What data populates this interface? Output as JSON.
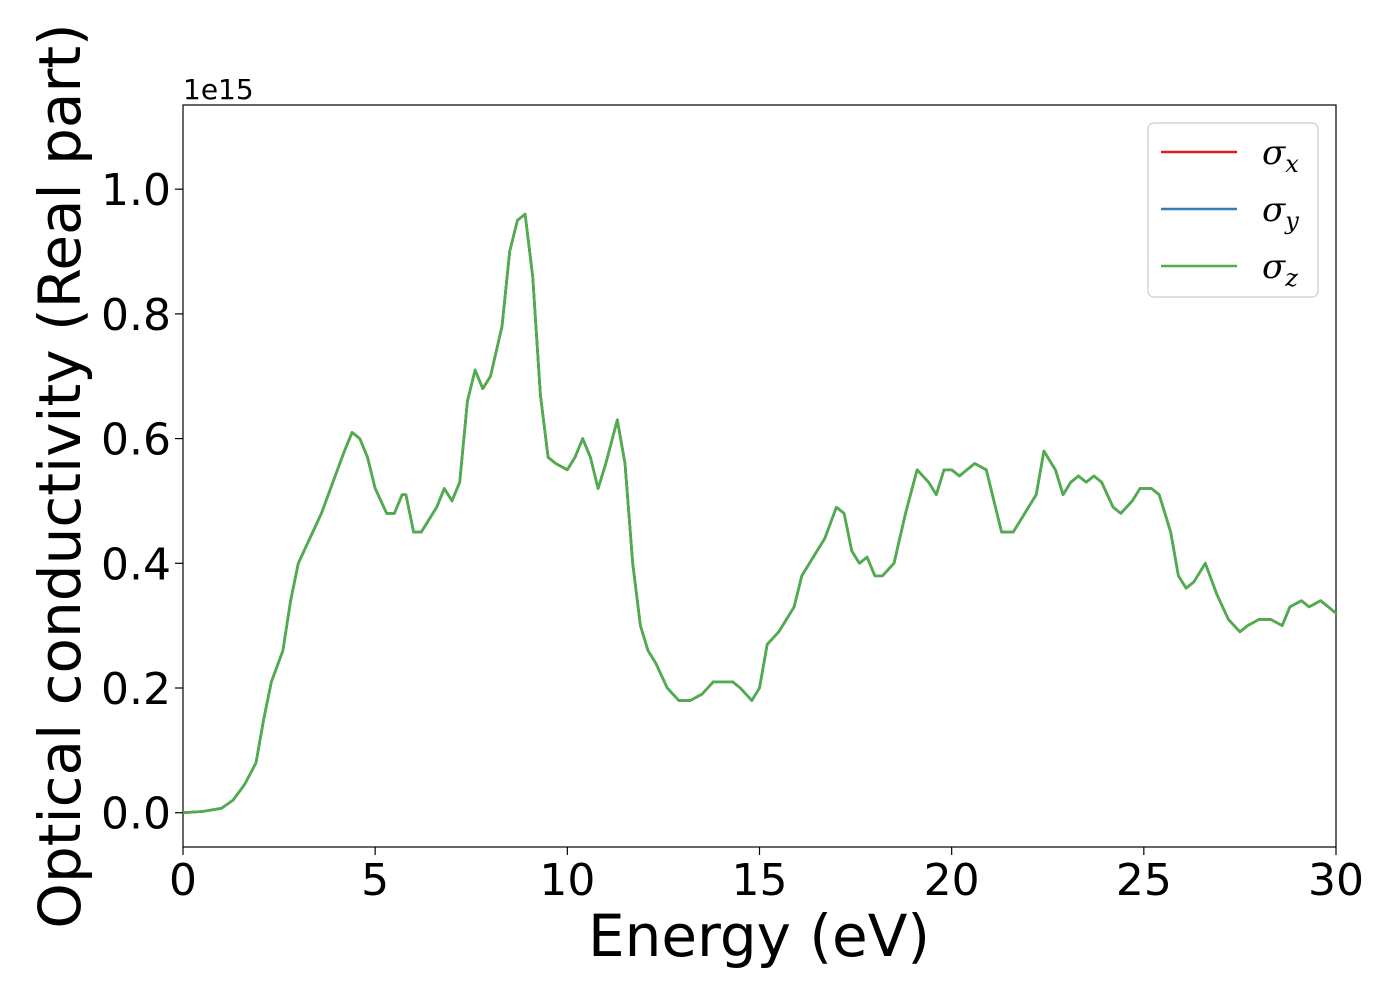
{
  "chart_data": {
    "type": "line",
    "xlabel": "Energy (eV)",
    "ylabel": "Optical conductivity (Real part)",
    "y_offset_label": "1e15",
    "xlim": [
      0,
      30
    ],
    "ylim": [
      -0.055,
      1.135
    ],
    "x_ticks": [
      0,
      5,
      10,
      15,
      20,
      25,
      30
    ],
    "x_tick_labels": [
      "0",
      "5",
      "10",
      "15",
      "20",
      "25",
      "30"
    ],
    "y_ticks": [
      0.0,
      0.2,
      0.4,
      0.6,
      0.8,
      1.0
    ],
    "y_tick_labels": [
      "0.0",
      "0.2",
      "0.4",
      "0.6",
      "0.8",
      "1.0"
    ],
    "grid": false,
    "legend_position": "top-right",
    "y_scale_factor": 1000000000000000.0,
    "x": [
      0.0,
      0.5,
      1.0,
      1.3,
      1.6,
      1.9,
      2.1,
      2.3,
      2.6,
      2.8,
      3.0,
      3.3,
      3.6,
      3.9,
      4.2,
      4.4,
      4.6,
      4.8,
      5.0,
      5.3,
      5.5,
      5.7,
      5.8,
      5.9,
      6.0,
      6.2,
      6.4,
      6.6,
      6.8,
      7.0,
      7.2,
      7.4,
      7.6,
      7.8,
      8.0,
      8.3,
      8.5,
      8.7,
      8.9,
      9.1,
      9.3,
      9.5,
      9.7,
      10.0,
      10.2,
      10.4,
      10.6,
      10.8,
      11.0,
      11.3,
      11.5,
      11.7,
      11.9,
      12.1,
      12.3,
      12.6,
      12.9,
      13.2,
      13.5,
      13.8,
      14.1,
      14.3,
      14.5,
      14.8,
      15.0,
      15.2,
      15.5,
      15.7,
      15.9,
      16.1,
      16.4,
      16.7,
      17.0,
      17.2,
      17.4,
      17.6,
      17.8,
      18.0,
      18.2,
      18.5,
      18.8,
      19.1,
      19.4,
      19.6,
      19.8,
      20.0,
      20.2,
      20.4,
      20.6,
      20.9,
      21.1,
      21.3,
      21.6,
      21.9,
      22.2,
      22.4,
      22.7,
      22.9,
      23.1,
      23.3,
      23.5,
      23.7,
      23.9,
      24.2,
      24.4,
      24.7,
      24.9,
      25.2,
      25.4,
      25.7,
      25.9,
      26.1,
      26.3,
      26.6,
      26.9,
      27.2,
      27.5,
      27.7,
      28.0,
      28.3,
      28.6,
      28.8,
      29.1,
      29.3,
      29.6,
      29.8,
      30.0
    ],
    "series": [
      {
        "name": "σx",
        "color": "#e41a1c",
        "values": [
          0.0,
          0.002,
          0.007,
          0.02,
          0.045,
          0.08,
          0.15,
          0.21,
          0.26,
          0.34,
          0.4,
          0.44,
          0.48,
          0.53,
          0.58,
          0.61,
          0.6,
          0.57,
          0.52,
          0.48,
          0.48,
          0.51,
          0.51,
          0.48,
          0.45,
          0.45,
          0.47,
          0.49,
          0.52,
          0.5,
          0.53,
          0.66,
          0.71,
          0.68,
          0.7,
          0.78,
          0.9,
          0.95,
          0.96,
          0.86,
          0.67,
          0.57,
          0.56,
          0.55,
          0.57,
          0.6,
          0.57,
          0.52,
          0.56,
          0.63,
          0.56,
          0.4,
          0.3,
          0.26,
          0.24,
          0.2,
          0.18,
          0.18,
          0.19,
          0.21,
          0.21,
          0.21,
          0.2,
          0.18,
          0.2,
          0.27,
          0.29,
          0.31,
          0.33,
          0.38,
          0.41,
          0.44,
          0.49,
          0.48,
          0.42,
          0.4,
          0.41,
          0.38,
          0.38,
          0.4,
          0.48,
          0.55,
          0.53,
          0.51,
          0.55,
          0.55,
          0.54,
          0.55,
          0.56,
          0.55,
          0.5,
          0.45,
          0.45,
          0.48,
          0.51,
          0.58,
          0.55,
          0.51,
          0.53,
          0.54,
          0.53,
          0.54,
          0.53,
          0.49,
          0.48,
          0.5,
          0.52,
          0.52,
          0.51,
          0.45,
          0.38,
          0.36,
          0.37,
          0.4,
          0.35,
          0.31,
          0.29,
          0.3,
          0.31,
          0.31,
          0.3,
          0.33,
          0.34,
          0.33,
          0.34,
          0.33,
          0.32
        ]
      },
      {
        "name": "σy",
        "color": "#377eb8",
        "values": [
          0.0,
          0.002,
          0.007,
          0.02,
          0.045,
          0.08,
          0.15,
          0.21,
          0.26,
          0.34,
          0.4,
          0.44,
          0.48,
          0.53,
          0.58,
          0.61,
          0.6,
          0.57,
          0.52,
          0.48,
          0.48,
          0.51,
          0.51,
          0.48,
          0.45,
          0.45,
          0.47,
          0.49,
          0.52,
          0.5,
          0.53,
          0.66,
          0.71,
          0.68,
          0.7,
          0.78,
          0.9,
          0.95,
          0.96,
          0.86,
          0.67,
          0.57,
          0.56,
          0.55,
          0.57,
          0.6,
          0.57,
          0.52,
          0.56,
          0.63,
          0.56,
          0.4,
          0.3,
          0.26,
          0.24,
          0.2,
          0.18,
          0.18,
          0.19,
          0.21,
          0.21,
          0.21,
          0.2,
          0.18,
          0.2,
          0.27,
          0.29,
          0.31,
          0.33,
          0.38,
          0.41,
          0.44,
          0.49,
          0.48,
          0.42,
          0.4,
          0.41,
          0.38,
          0.38,
          0.4,
          0.48,
          0.55,
          0.53,
          0.51,
          0.55,
          0.55,
          0.54,
          0.55,
          0.56,
          0.55,
          0.5,
          0.45,
          0.45,
          0.48,
          0.51,
          0.58,
          0.55,
          0.51,
          0.53,
          0.54,
          0.53,
          0.54,
          0.53,
          0.49,
          0.48,
          0.5,
          0.52,
          0.52,
          0.51,
          0.45,
          0.38,
          0.36,
          0.37,
          0.4,
          0.35,
          0.31,
          0.29,
          0.3,
          0.31,
          0.31,
          0.3,
          0.33,
          0.34,
          0.33,
          0.34,
          0.33,
          0.32
        ]
      },
      {
        "name": "σz",
        "color": "#4daf4a",
        "values": [
          0.0,
          0.002,
          0.007,
          0.02,
          0.045,
          0.08,
          0.15,
          0.21,
          0.26,
          0.34,
          0.4,
          0.44,
          0.48,
          0.53,
          0.58,
          0.61,
          0.6,
          0.57,
          0.52,
          0.48,
          0.48,
          0.51,
          0.51,
          0.48,
          0.45,
          0.45,
          0.47,
          0.49,
          0.52,
          0.5,
          0.53,
          0.66,
          0.71,
          0.68,
          0.7,
          0.78,
          0.9,
          0.95,
          0.96,
          0.86,
          0.67,
          0.57,
          0.56,
          0.55,
          0.57,
          0.6,
          0.57,
          0.52,
          0.56,
          0.63,
          0.56,
          0.4,
          0.3,
          0.26,
          0.24,
          0.2,
          0.18,
          0.18,
          0.19,
          0.21,
          0.21,
          0.21,
          0.2,
          0.18,
          0.2,
          0.27,
          0.29,
          0.31,
          0.33,
          0.38,
          0.41,
          0.44,
          0.49,
          0.48,
          0.42,
          0.4,
          0.41,
          0.38,
          0.38,
          0.4,
          0.48,
          0.55,
          0.53,
          0.51,
          0.55,
          0.55,
          0.54,
          0.55,
          0.56,
          0.55,
          0.5,
          0.45,
          0.45,
          0.48,
          0.51,
          0.58,
          0.55,
          0.51,
          0.53,
          0.54,
          0.53,
          0.54,
          0.53,
          0.49,
          0.48,
          0.5,
          0.52,
          0.52,
          0.51,
          0.45,
          0.38,
          0.36,
          0.37,
          0.4,
          0.35,
          0.31,
          0.29,
          0.3,
          0.31,
          0.31,
          0.3,
          0.33,
          0.34,
          0.33,
          0.34,
          0.33,
          0.32
        ]
      }
    ],
    "legend": [
      {
        "base": "σ",
        "sub": "x",
        "color": "#e41a1c"
      },
      {
        "base": "σ",
        "sub": "y",
        "color": "#377eb8"
      },
      {
        "base": "σ",
        "sub": "z",
        "color": "#4daf4a"
      }
    ]
  }
}
